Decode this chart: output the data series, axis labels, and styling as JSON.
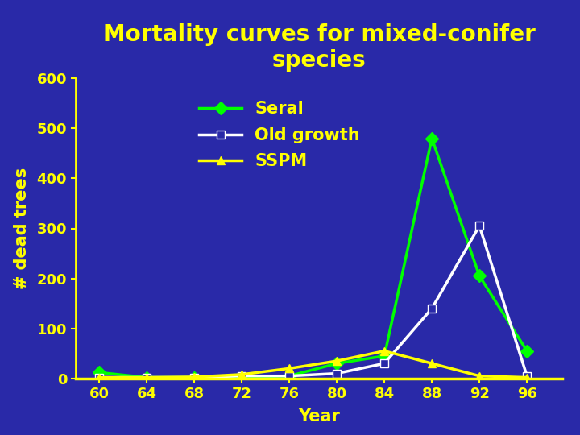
{
  "title": "Mortality curves for mixed-conifer\nspecies",
  "xlabel": "Year",
  "ylabel": "# dead trees",
  "background_color": "#2929a8",
  "title_color": "#ffff00",
  "axis_color": "#ffff00",
  "tick_color": "#ffff00",
  "label_color": "#ffff00",
  "years": [
    60,
    64,
    68,
    72,
    76,
    80,
    84,
    88,
    92,
    96
  ],
  "seral": [
    12,
    2,
    2,
    2,
    5,
    30,
    45,
    480,
    205,
    55
  ],
  "old_growth": [
    2,
    2,
    2,
    5,
    5,
    10,
    30,
    140,
    305,
    5
  ],
  "sspm": [
    2,
    2,
    3,
    8,
    20,
    35,
    55,
    30,
    5,
    2
  ],
  "seral_color": "#00ff00",
  "old_growth_color": "#ffffff",
  "sspm_color": "#ffff00",
  "ylim": [
    0,
    600
  ],
  "yticks": [
    0,
    100,
    200,
    300,
    400,
    500,
    600
  ],
  "xticks": [
    60,
    64,
    68,
    72,
    76,
    80,
    84,
    88,
    92,
    96
  ],
  "legend_labels": [
    "Seral",
    "Old growth",
    "SSPM"
  ],
  "title_fontsize": 20,
  "label_fontsize": 15,
  "tick_fontsize": 13,
  "legend_fontsize": 15
}
